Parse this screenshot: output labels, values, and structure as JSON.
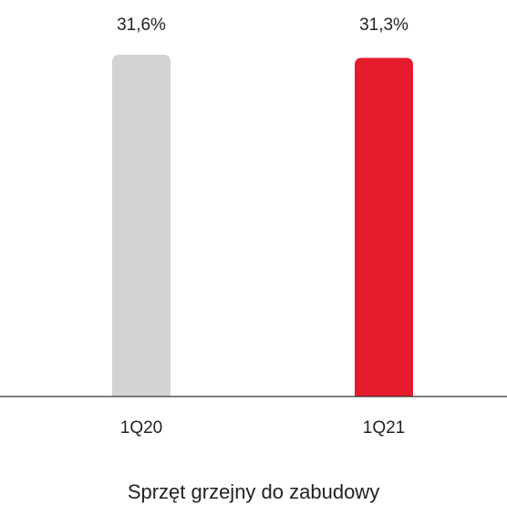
{
  "chart_data": {
    "type": "bar",
    "title": "Sprzęt grzejny do zabudowy",
    "categories": [
      "1Q20",
      "1Q21"
    ],
    "values": [
      31.6,
      31.3
    ],
    "value_labels": [
      "31,6%",
      "31,3%"
    ],
    "colors": [
      "#d3d3d3",
      "#e41b2c"
    ]
  }
}
